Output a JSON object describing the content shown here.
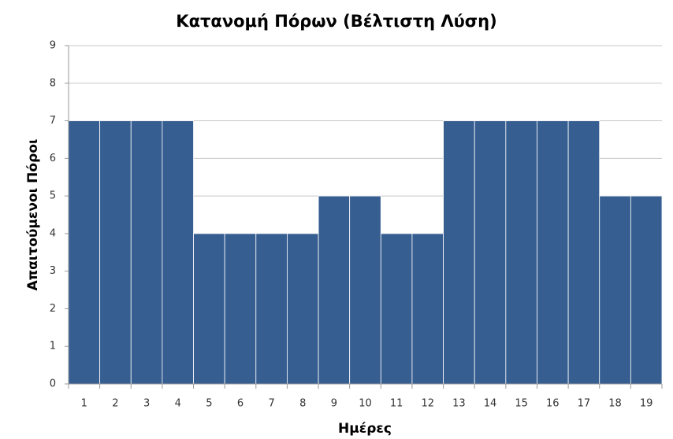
{
  "chart_data": {
    "type": "bar",
    "title": "Κατανομή Πόρων (Βέλτιστη Λύση)",
    "x_label": "Ημέρες",
    "y_label": "Απαιτούμενοι Πόροι",
    "categories": [
      "1",
      "2",
      "3",
      "4",
      "5",
      "6",
      "7",
      "8",
      "9",
      "10",
      "11",
      "12",
      "13",
      "14",
      "15",
      "16",
      "17",
      "18",
      "19"
    ],
    "values": [
      7,
      7,
      7,
      7,
      4,
      4,
      4,
      4,
      5,
      5,
      4,
      4,
      7,
      7,
      7,
      7,
      7,
      5,
      5
    ],
    "color": "#375e91",
    "ylim": [
      0,
      9
    ],
    "yticks": [
      0,
      1,
      2,
      3,
      4,
      5,
      6,
      7,
      8,
      9
    ],
    "grid": true
  }
}
